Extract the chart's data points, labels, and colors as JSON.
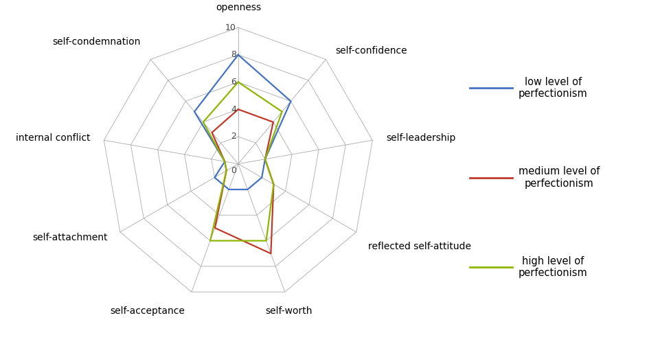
{
  "categories": [
    "openness",
    "self-confidence",
    "self-leadership",
    "reflected self-attitude",
    "self-worth",
    "self-acceptance",
    "self-attachment",
    "internal conflict",
    "self-condemnation"
  ],
  "series": {
    "low": [
      8,
      6,
      2,
      2,
      2,
      2,
      2,
      1,
      5
    ],
    "medium": [
      4,
      4,
      2,
      3,
      7,
      5,
      1,
      1,
      3
    ],
    "high": [
      6,
      5,
      2,
      3,
      6,
      6,
      1,
      1,
      4
    ]
  },
  "colors": {
    "low": "#4472C4",
    "medium": "#C0392B",
    "high": "#8DB600"
  },
  "legend_labels": {
    "low": "low level of\nperfectionism",
    "medium": "medium level of\nperfectionism",
    "high": "high level of\nperfectionism"
  },
  "rmax": 10,
  "rticks": [
    0,
    2,
    4,
    6,
    8,
    10
  ],
  "background_color": "#ffffff",
  "linewidth": 1.6,
  "label_fontsize": 10,
  "tick_fontsize": 9,
  "legend_fontsize": 10.5,
  "grid_color": "#aaaaaa",
  "grid_linewidth": 0.6
}
